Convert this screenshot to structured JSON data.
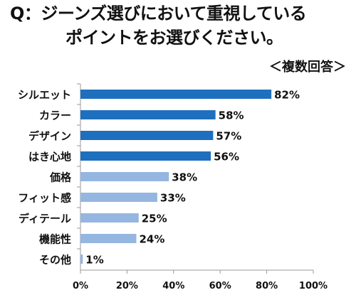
{
  "title_line1": "Q：ジーンズ選びにおいて重視している",
  "title_line2": "ポイントをお選びください。",
  "note": "＜複数回答＞",
  "colors": {
    "dark": "#1f6fbf",
    "light": "#95b6e0",
    "axis": "#999999",
    "grid": "#d0d0d0"
  },
  "chart_data": {
    "type": "bar",
    "orientation": "horizontal",
    "categories": [
      "シルエット",
      "カラー",
      "デザイン",
      "はき心地",
      "価格",
      "フィット感",
      "ディテール",
      "機能性",
      "その他"
    ],
    "values": [
      82,
      58,
      57,
      56,
      38,
      33,
      25,
      24,
      1
    ],
    "value_labels": [
      "82%",
      "58%",
      "57%",
      "56%",
      "38%",
      "33%",
      "25%",
      "24%",
      "1%"
    ],
    "highlight_top": 4,
    "xlim": [
      0,
      100
    ],
    "xticks": [
      0,
      20,
      40,
      60,
      80,
      100
    ],
    "xtick_labels": [
      "0%",
      "20%",
      "40%",
      "60%",
      "80%",
      "100%"
    ],
    "grid": false
  }
}
